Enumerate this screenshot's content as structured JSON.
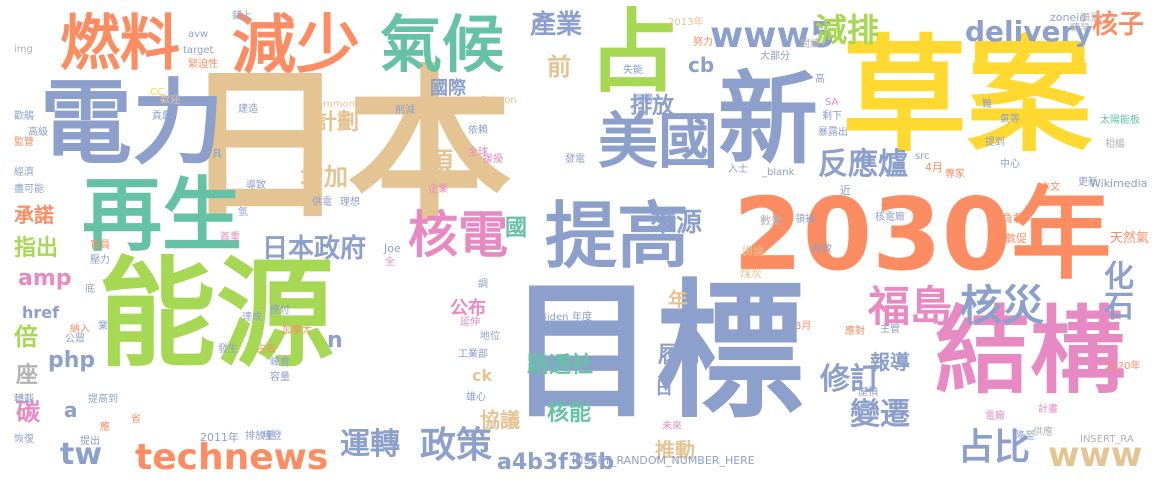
{
  "palette": {
    "green": "#a6d854",
    "orange": "#fc8d62",
    "blue": "#8da0cb",
    "tan": "#e5c494",
    "yellow": "#ffd92f",
    "pink": "#e78ac3",
    "teal": "#66c2a5",
    "gray": "#b3b3b3",
    "background": "#ffffff"
  },
  "words": [
    {
      "text": "能源",
      "color": "green"
    },
    {
      "text": "日本",
      "color": "tan"
    },
    {
      "text": "目標",
      "color": "blue"
    },
    {
      "text": "草案",
      "color": "yellow"
    },
    {
      "text": "2030年",
      "color": "orange"
    },
    {
      "text": "電力",
      "color": "blue"
    },
    {
      "text": "結構",
      "color": "pink"
    },
    {
      "text": "再生",
      "color": "teal"
    },
    {
      "text": "新",
      "color": "blue"
    },
    {
      "text": "提高",
      "color": "blue"
    },
    {
      "text": "減少",
      "color": "orange"
    },
    {
      "text": "氣候",
      "color": "teal"
    },
    {
      "text": "燃料",
      "color": "orange"
    },
    {
      "text": "占",
      "color": "green"
    },
    {
      "text": "美國",
      "color": "blue"
    },
    {
      "text": "核電",
      "color": "pink"
    },
    {
      "text": "福島",
      "color": "pink"
    },
    {
      "text": "核災",
      "color": "blue"
    },
    {
      "text": "technews",
      "color": "orange"
    },
    {
      "text": "www5",
      "color": "blue"
    },
    {
      "text": "delivery",
      "color": "blue"
    },
    {
      "text": "減排",
      "color": "green"
    },
    {
      "text": "核子",
      "color": "orange"
    },
    {
      "text": "反應爐",
      "color": "blue"
    },
    {
      "text": "日本政府",
      "color": "blue"
    },
    {
      "text": "運轉",
      "color": "blue"
    },
    {
      "text": "政策",
      "color": "blue"
    },
    {
      "text": "占比",
      "color": "blue"
    },
    {
      "text": "修訂",
      "color": "blue"
    },
    {
      "text": "變遷",
      "color": "blue"
    },
    {
      "text": "www",
      "color": "tan"
    },
    {
      "text": "tw",
      "color": "blue"
    },
    {
      "text": "a4b3f35b",
      "color": "blue"
    },
    {
      "text": "化石",
      "color": "blue"
    },
    {
      "text": "產業",
      "color": "blue"
    },
    {
      "text": "來源",
      "color": "blue"
    },
    {
      "text": "計劃",
      "color": "tan"
    },
    {
      "text": "增加",
      "color": "tan"
    },
    {
      "text": "排放",
      "color": "blue"
    },
    {
      "text": "cb",
      "color": "blue"
    },
    {
      "text": "前",
      "color": "tan"
    },
    {
      "text": "項",
      "color": "tan"
    },
    {
      "text": "國際",
      "color": "blue"
    },
    {
      "text": "國",
      "color": "teal"
    },
    {
      "text": "路透社",
      "color": "teal"
    },
    {
      "text": "核能",
      "color": "teal"
    },
    {
      "text": "履行",
      "color": "blue"
    },
    {
      "text": "報導",
      "color": "blue"
    },
    {
      "text": "協議",
      "color": "tan"
    },
    {
      "text": "推動",
      "color": "tan"
    },
    {
      "text": "承諾",
      "color": "orange"
    },
    {
      "text": "指出",
      "color": "green"
    },
    {
      "text": "amp",
      "color": "pink"
    },
    {
      "text": "倍",
      "color": "green"
    },
    {
      "text": "php",
      "color": "blue"
    },
    {
      "text": "座",
      "color": "gray"
    },
    {
      "text": "碳",
      "color": "pink"
    },
    {
      "text": "a",
      "color": "blue"
    },
    {
      "text": "公布",
      "color": "pink"
    },
    {
      "text": "年",
      "color": "tan"
    },
    {
      "text": "href",
      "color": "blue"
    },
    {
      "text": "n",
      "color": "blue"
    },
    {
      "text": "ck",
      "color": "tan"
    },
    {
      "text": "日",
      "color": "blue"
    },
    {
      "text": "INSERT_RANDOM_NUMBER_HERE",
      "color": "blue"
    },
    {
      "text": "Commons",
      "color": "tan"
    },
    {
      "text": "Sakaon",
      "color": "tan"
    },
    {
      "text": "Wikimedia",
      "color": "blue"
    },
    {
      "text": "中央廣播電台",
      "color": "blue"
    },
    {
      "text": "Biden",
      "color": "blue"
    },
    {
      "text": "2013年",
      "color": "tan"
    },
    {
      "text": "2011年",
      "color": "blue"
    },
    {
      "text": "2020年",
      "color": "orange"
    },
    {
      "text": "天然氣",
      "color": "orange"
    },
    {
      "text": "INSERT_RA",
      "color": "gray"
    },
    {
      "text": "zoneid",
      "color": "blue"
    },
    {
      "text": "target",
      "color": "blue"
    },
    {
      "text": "avw",
      "color": "blue"
    },
    {
      "text": "img",
      "color": "gray"
    },
    {
      "text": "_blank",
      "color": "blue"
    },
    {
      "text": "Joe",
      "color": "blue"
    },
    {
      "text": "src",
      "color": "blue"
    },
    {
      "text": "CC",
      "color": "yellow"
    },
    {
      "text": "SA",
      "color": "pink"
    },
    {
      "text": "4月",
      "color": "orange"
    },
    {
      "text": "3月",
      "color": "orange"
    },
    {
      "text": "精早",
      "color": "gray"
    },
    {
      "text": "願景",
      "color": "gray"
    },
    {
      "text": "太陽能板",
      "color": "teal"
    },
    {
      "text": "相繼",
      "color": "gray"
    },
    {
      "text": "氣等",
      "color": "blue"
    },
    {
      "text": "難",
      "color": "blue"
    },
    {
      "text": "暴露出",
      "color": "blue"
    },
    {
      "text": "剩下",
      "color": "blue"
    },
    {
      "text": "提到",
      "color": "blue"
    },
    {
      "text": "中心",
      "color": "blue"
    },
    {
      "text": "專家",
      "color": "orange"
    },
    {
      "text": "本文",
      "color": "orange"
    },
    {
      "text": "更新",
      "color": "blue"
    },
    {
      "text": "近",
      "color": "blue"
    },
    {
      "text": "核電廠",
      "color": "blue"
    },
    {
      "text": "負載",
      "color": "orange"
    },
    {
      "text": "敦促",
      "color": "orange"
    },
    {
      "text": "領袖",
      "color": "blue"
    },
    {
      "text": "數量",
      "color": "gray"
    },
    {
      "text": "財政",
      "color": "blue"
    },
    {
      "text": "煤炭",
      "color": "tan"
    },
    {
      "text": "輿論",
      "color": "tan"
    },
    {
      "text": "總統",
      "color": "blue"
    },
    {
      "text": "地位",
      "color": "blue"
    },
    {
      "text": "工業部",
      "color": "blue"
    },
    {
      "text": "雄心",
      "color": "blue"
    },
    {
      "text": "應對",
      "color": "orange"
    },
    {
      "text": "主管",
      "color": "blue"
    },
    {
      "text": "屋頂",
      "color": "blue"
    },
    {
      "text": "計畫",
      "color": "pink"
    },
    {
      "text": "電廠",
      "color": "pink"
    },
    {
      "text": "降至",
      "color": "blue"
    },
    {
      "text": "供應",
      "color": "gray"
    },
    {
      "text": "未來",
      "color": "pink"
    },
    {
      "text": "拜登",
      "color": "blue"
    },
    {
      "text": "排放量",
      "color": "blue"
    },
    {
      "text": "提出",
      "color": "blue"
    },
    {
      "text": "恢復",
      "color": "blue"
    },
    {
      "text": "轉載",
      "color": "blue"
    },
    {
      "text": "提高到",
      "color": "blue"
    },
    {
      "text": "公眾",
      "color": "blue"
    },
    {
      "text": "納入",
      "color": "orange"
    },
    {
      "text": "業",
      "color": "blue"
    },
    {
      "text": "底",
      "color": "blue"
    },
    {
      "text": "壓力",
      "color": "blue"
    },
    {
      "text": "官員",
      "color": "orange"
    },
    {
      "text": "歡迎",
      "color": "tan"
    },
    {
      "text": "盡可能",
      "color": "blue"
    },
    {
      "text": "經濟",
      "color": "blue"
    },
    {
      "text": "監管",
      "color": "orange"
    },
    {
      "text": "歡鵑",
      "color": "blue"
    },
    {
      "text": "高級",
      "color": "blue"
    },
    {
      "text": "貢獻",
      "color": "blue"
    },
    {
      "text": "建造",
      "color": "blue"
    },
    {
      "text": "緊迫性",
      "color": "orange"
    },
    {
      "text": "鋪上",
      "color": "blue"
    },
    {
      "text": "具",
      "color": "blue"
    },
    {
      "text": "氫",
      "color": "blue"
    },
    {
      "text": "導致",
      "color": "blue"
    },
    {
      "text": "供電",
      "color": "blue"
    },
    {
      "text": "理想",
      "color": "blue"
    },
    {
      "text": "首重",
      "color": "pink"
    },
    {
      "text": "全",
      "color": "pink"
    },
    {
      "text": "應付",
      "color": "blue"
    },
    {
      "text": "加拿大",
      "color": "orange"
    },
    {
      "text": "達成",
      "color": "blue"
    },
    {
      "text": "發生",
      "color": "blue"
    },
    {
      "text": "占去",
      "color": "orange"
    },
    {
      "text": "峰會",
      "color": "blue"
    },
    {
      "text": "容量",
      "color": "blue"
    },
    {
      "text": "延伸",
      "color": "pink"
    },
    {
      "text": "年度",
      "color": "blue"
    },
    {
      "text": "調",
      "color": "blue"
    },
    {
      "text": "省",
      "color": "orange"
    },
    {
      "text": "應",
      "color": "orange"
    },
    {
      "text": "削減",
      "color": "blue"
    },
    {
      "text": "全球",
      "color": "pink"
    },
    {
      "text": "依賴",
      "color": "blue"
    },
    {
      "text": "援擾",
      "color": "pink"
    },
    {
      "text": "發電",
      "color": "blue"
    },
    {
      "text": "企業",
      "color": "pink"
    },
    {
      "text": "入士",
      "color": "blue"
    },
    {
      "text": "大部分",
      "color": "blue"
    },
    {
      "text": "間續",
      "color": "gray"
    },
    {
      "text": "高",
      "color": "blue"
    },
    {
      "text": "努力",
      "color": "orange"
    },
    {
      "text": "失能",
      "color": "blue"
    },
    {
      "text": "機構",
      "color": "blue"
    }
  ]
}
